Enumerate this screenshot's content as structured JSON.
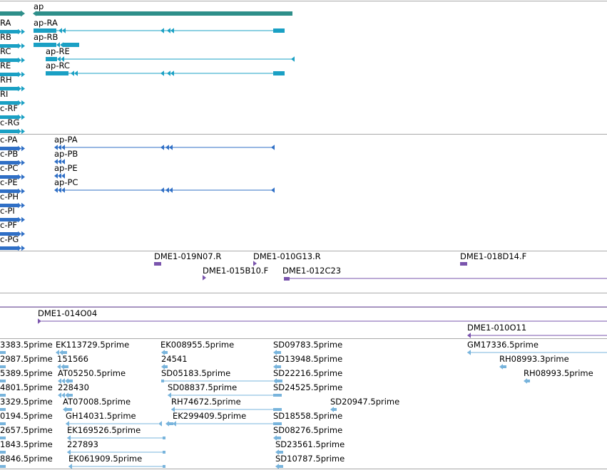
{
  "colors": {
    "gene": "#2e8f8a",
    "transcript": "#1aa0c4",
    "protein": "#2f6fc6",
    "clone": "#7a54ad",
    "est": "#78b4dc",
    "divider": "#aaaaaa",
    "text": "#000000"
  },
  "gene_track": {
    "label": "ap",
    "cut_glyph": "right-arrow-icon"
  },
  "transcript_track": {
    "clipped_labels": [
      "RA",
      "RB",
      "RC",
      "RE",
      "RH",
      "RI",
      "c-RF",
      "c-RG"
    ],
    "features": [
      {
        "label": "ap-RA",
        "shape": "long"
      },
      {
        "label": "ap-RB",
        "shape": "short"
      },
      {
        "label": "ap-RE",
        "shape": "tail"
      },
      {
        "label": "ap-RC",
        "shape": "long"
      }
    ]
  },
  "protein_track": {
    "clipped_labels": [
      "c-PA",
      "c-PB",
      "c-PC",
      "c-PE",
      "c-PH",
      "c-PI",
      "c-PF",
      "c-PG"
    ],
    "features": [
      {
        "label": "ap-PA",
        "shape": "long"
      },
      {
        "label": "ap-PB",
        "shape": "short"
      },
      {
        "label": "ap-PE",
        "shape": "short"
      },
      {
        "label": "ap-PC",
        "shape": "long"
      }
    ]
  },
  "clone_track_1": {
    "features": [
      {
        "label": "DME1-019N07.R"
      },
      {
        "label": "DME1-010G13.R"
      },
      {
        "label": "DME1-018D14.F"
      },
      {
        "label": "DME1-015B10.F"
      },
      {
        "label": "DME1-012C23"
      }
    ]
  },
  "clone_track_2": {
    "features": [
      {
        "label": "DME1-014O04"
      },
      {
        "label": "DME1-010O11"
      }
    ]
  },
  "est_track": {
    "features": [
      {
        "label": "3383.5prime"
      },
      {
        "label": "EK113729.5prime"
      },
      {
        "label": "EK008955.5prime"
      },
      {
        "label": "SD09783.5prime"
      },
      {
        "label": "GM17336.5prime"
      },
      {
        "label": "2987.5prime"
      },
      {
        "label": "151566"
      },
      {
        "label": "24541"
      },
      {
        "label": "SD13948.5prime"
      },
      {
        "label": "RH08993.3prime"
      },
      {
        "label": "5389.5prime"
      },
      {
        "label": "AT05250.5prime"
      },
      {
        "label": "SD05183.5prime"
      },
      {
        "label": "SD22216.5prime"
      },
      {
        "label": "RH08993.5prime"
      },
      {
        "label": "4801.5prime"
      },
      {
        "label": "228430"
      },
      {
        "label": "SD08837.5prime"
      },
      {
        "label": "SD24525.5prime"
      },
      {
        "label": "3329.5prime"
      },
      {
        "label": "AT07008.5prime"
      },
      {
        "label": "RH74672.5prime"
      },
      {
        "label": "SD20947.5prime"
      },
      {
        "label": "0194.5prime"
      },
      {
        "label": "GH14031.5prime"
      },
      {
        "label": "EK299409.5prime"
      },
      {
        "label": "SD18558.5prime"
      },
      {
        "label": "2657.5prime"
      },
      {
        "label": "EK169526.5prime"
      },
      {
        "label": "SD08276.5prime"
      },
      {
        "label": "1843.5prime"
      },
      {
        "label": "227893"
      },
      {
        "label": "SD23561.5prime"
      },
      {
        "label": "8846.5prime"
      },
      {
        "label": "EK061909.5prime"
      },
      {
        "label": "SD10787.5prime"
      }
    ]
  }
}
